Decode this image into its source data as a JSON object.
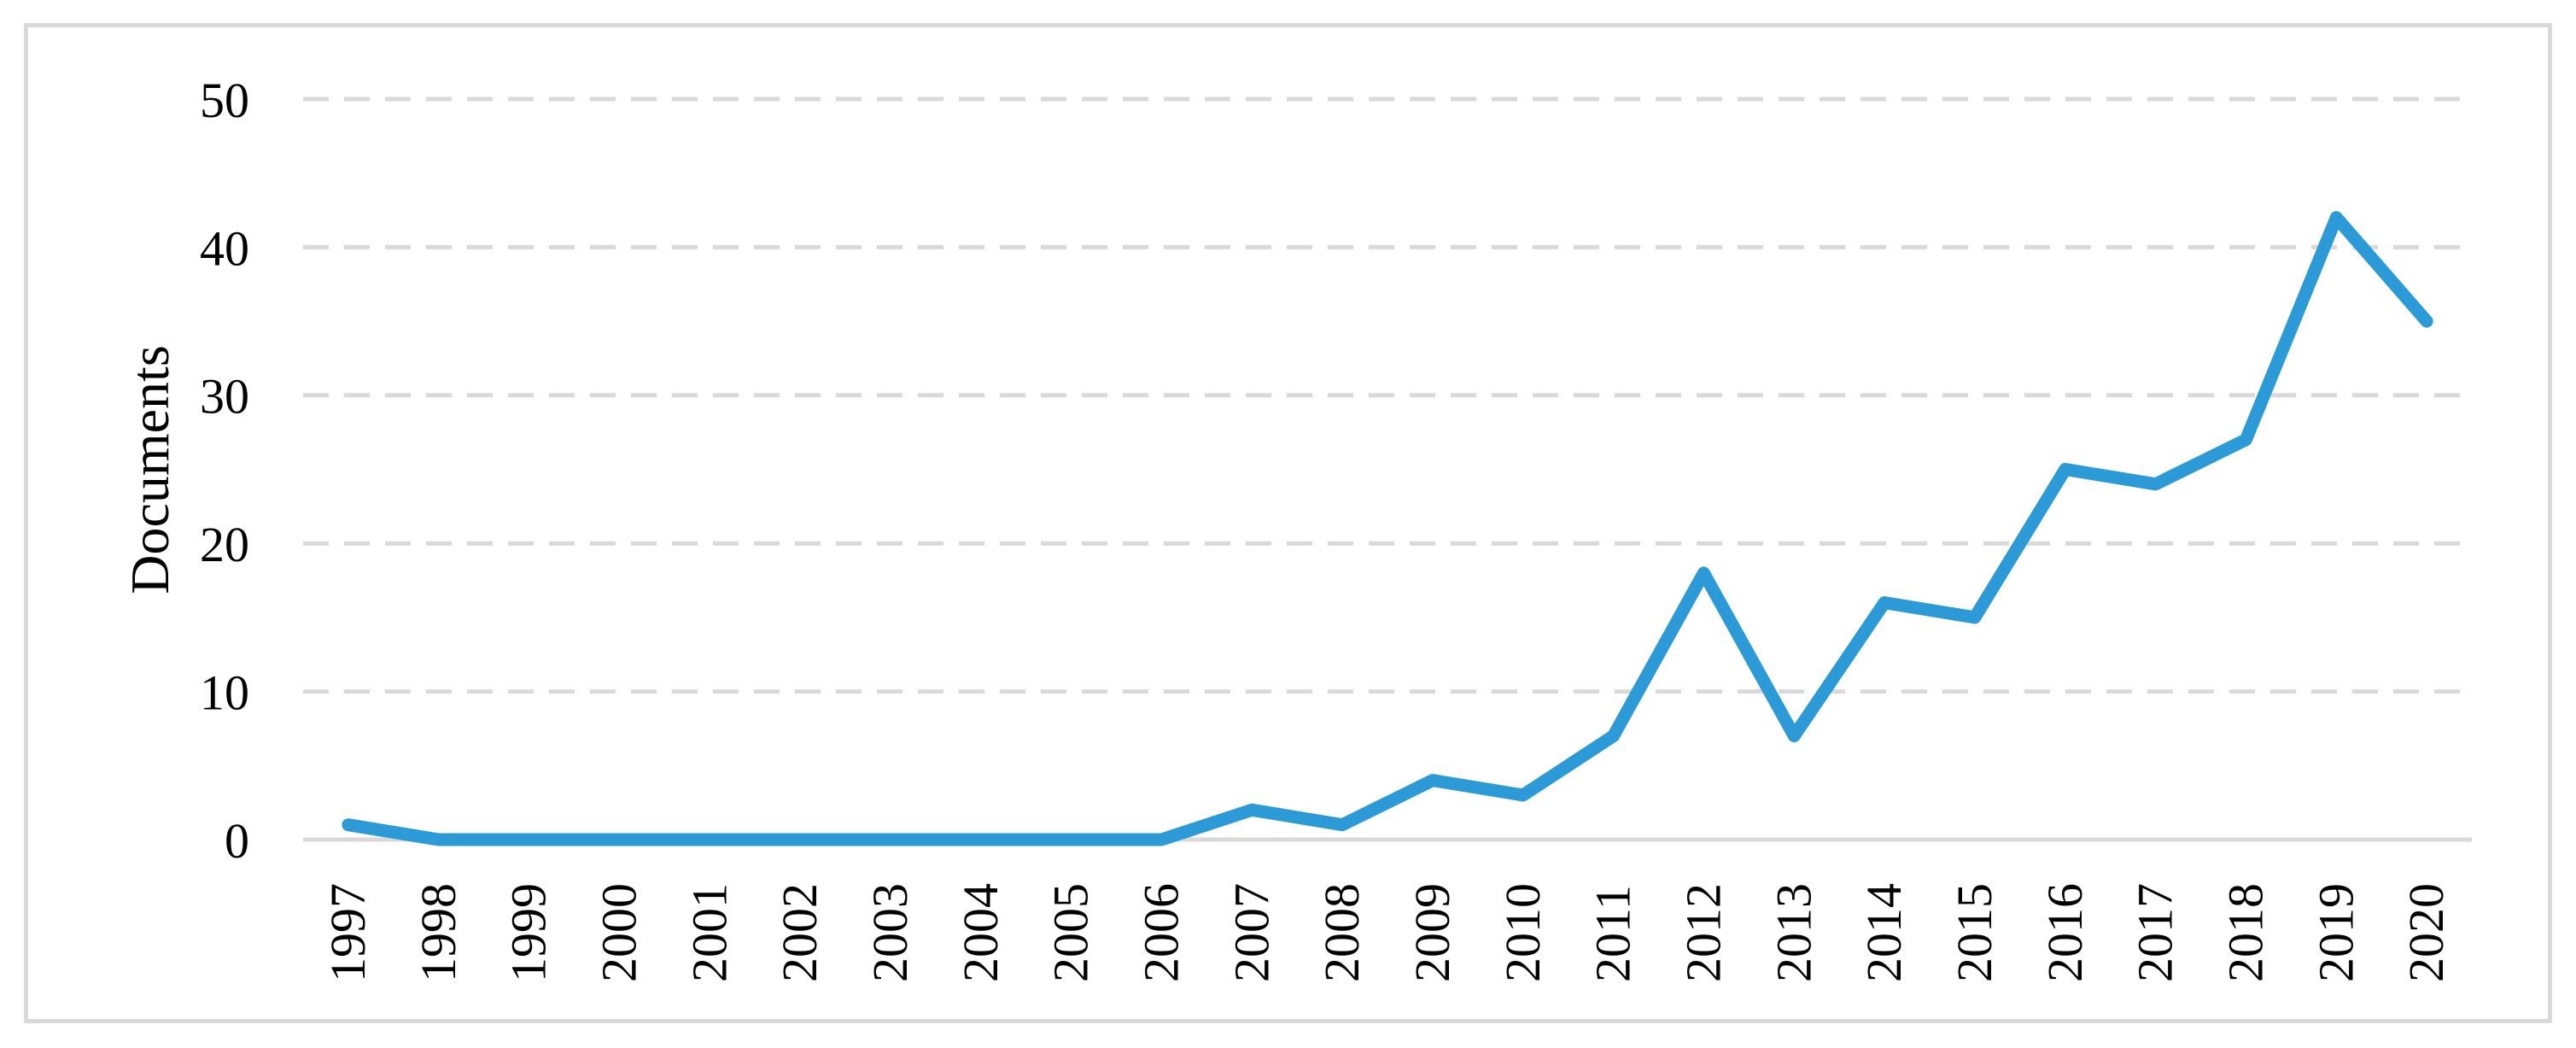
{
  "chart_data": {
    "type": "line",
    "title": "",
    "xlabel": "",
    "ylabel": "Documents",
    "categories": [
      "1997",
      "1998",
      "1999",
      "2000",
      "2001",
      "2002",
      "2003",
      "2004",
      "2005",
      "2006",
      "2007",
      "2008",
      "2009",
      "2010",
      "2011",
      "2012",
      "2013",
      "2014",
      "2015",
      "2016",
      "2017",
      "2018",
      "2019",
      "2020"
    ],
    "series": [
      {
        "name": "Documents",
        "values": [
          1,
          0,
          0,
          0,
          0,
          0,
          0,
          0,
          0,
          0,
          2,
          1,
          4,
          3,
          7,
          18,
          7,
          16,
          15,
          25,
          24,
          27,
          42,
          35
        ]
      }
    ],
    "ylim": [
      0,
      50
    ],
    "yticks": [
      0,
      10,
      20,
      30,
      40,
      50
    ],
    "grid": "horizontal-dashed",
    "legend": "none",
    "x_tick_rotation_deg": -90,
    "colors": {
      "line": "#2B9AD6",
      "gridline": "#D9D9D9",
      "axis_line": "#D9D9D9",
      "border": "#D9D9D9",
      "text": "#000000",
      "background": "#FFFFFF"
    }
  }
}
